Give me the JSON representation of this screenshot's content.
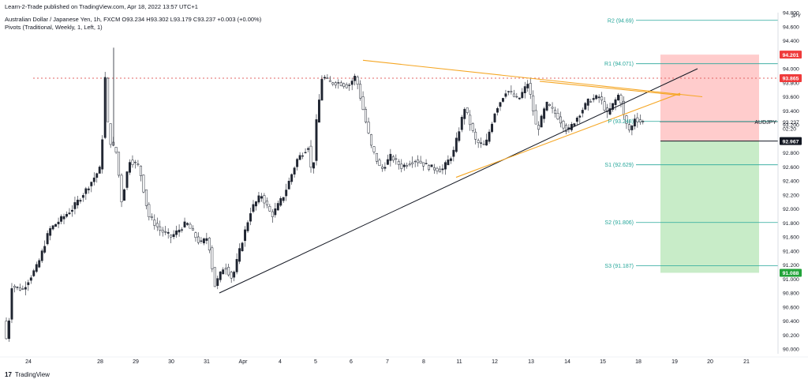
{
  "header": {
    "published": "Learn-2-Trade published on TradingView.com, Apr 18, 2022 13:57 UTC+1",
    "symbol_line": "Australian Dollar / Japanese Yen, 1h, FXCM  O93.234  H93.302  L93.179  C93.237  +0.003 (+0.00%)",
    "pivots_line": "Pivots (Traditional, Weekly, 1, Left, 1)"
  },
  "branding": {
    "logo_text": "17",
    "name": "TradingView"
  },
  "colors": {
    "up": "#26a69a",
    "down": "#ef5350",
    "candle": "#1f2430",
    "pivot_line": "#26a69a",
    "triangle": "#f5a623",
    "trendline": "#131722",
    "resistance_dotted": "#e06666",
    "sell_zone": "#ffcccc",
    "buy_zone": "#c8ecc8"
  },
  "chart_data": {
    "type": "candlestick",
    "instrument": "AUDJPY",
    "timeframe": "1h",
    "x_ticks": [
      "24",
      "28",
      "29",
      "30",
      "31",
      "Apr",
      "4",
      "5",
      "6",
      "7",
      "8",
      "11",
      "12",
      "13",
      "14",
      "15",
      "18",
      "19",
      "20",
      "21"
    ],
    "y_range": [
      90.0,
      94.8
    ],
    "y_ticks": [
      90.0,
      90.2,
      90.4,
      90.6,
      90.8,
      91.0,
      91.2,
      91.4,
      91.6,
      91.8,
      92.0,
      92.2,
      92.4,
      92.6,
      92.8,
      93.0,
      93.2,
      93.4,
      93.6,
      93.8,
      94.0,
      94.2,
      94.4,
      94.6,
      94.8
    ],
    "y_tick_labels": [
      "90.000",
      "90.200",
      "90.400",
      "90.600",
      "90.800",
      "91.000",
      "91.200",
      "91.400",
      "91.600",
      "91.800",
      "92.000",
      "92.200",
      "92.400",
      "92.600",
      "92.800",
      "93.000",
      "93.200",
      "93.400",
      "93.600",
      "93.800",
      "94.000",
      "94.200",
      "94.400",
      "94.600",
      "94.800"
    ],
    "axis_top_label": "94.800 JPY",
    "current_price": {
      "label": "AUDJPY",
      "value": "93.237",
      "countdown": "02:20",
      "price": 93.237
    },
    "pivots": [
      {
        "label": "R2 (94.69)",
        "value": 94.69
      },
      {
        "label": "R1 (94.071)",
        "value": 94.071
      },
      {
        "label": "P (93.248)",
        "value": 93.248
      },
      {
        "label": "S1 (92.629)",
        "value": 92.629
      },
      {
        "label": "S2 (91.806)",
        "value": 91.806
      },
      {
        "label": "S3 (91.187)",
        "value": 91.187
      }
    ],
    "price_tags": [
      {
        "text": "94.201",
        "value": 94.201,
        "bg": "#ef3b3b",
        "fg": "#ffffff"
      },
      {
        "text": "93.865",
        "value": 93.865,
        "bg": "#ef3b3b",
        "fg": "#ffffff"
      },
      {
        "text": "92.967",
        "value": 92.967,
        "bg": "#131722",
        "fg": "#ffffff"
      },
      {
        "text": "91.088",
        "value": 91.088,
        "bg": "#22a33a",
        "fg": "#ffffff"
      }
    ],
    "position": {
      "stop": 94.201,
      "entry": 92.967,
      "target": 91.088
    },
    "resistance_level": 93.865,
    "anchors": [
      {
        "t": 0,
        "p": 90.4
      },
      {
        "t": 5,
        "p": 90.05
      },
      {
        "t": 10,
        "p": 90.9
      },
      {
        "t": 25,
        "p": 90.85
      },
      {
        "t": 45,
        "p": 91.2
      },
      {
        "t": 60,
        "p": 91.7
      },
      {
        "t": 75,
        "p": 91.85
      },
      {
        "t": 90,
        "p": 92.0
      },
      {
        "t": 110,
        "p": 92.3
      },
      {
        "t": 128,
        "p": 92.6
      },
      {
        "t": 133,
        "p": 93.9
      },
      {
        "t": 138,
        "p": 93.0
      },
      {
        "t": 148,
        "p": 92.8
      },
      {
        "t": 155,
        "p": 92.1
      },
      {
        "t": 165,
        "p": 92.7
      },
      {
        "t": 178,
        "p": 92.6
      },
      {
        "t": 190,
        "p": 91.9
      },
      {
        "t": 205,
        "p": 91.7
      },
      {
        "t": 220,
        "p": 91.6
      },
      {
        "t": 240,
        "p": 91.8
      },
      {
        "t": 258,
        "p": 91.5
      },
      {
        "t": 268,
        "p": 91.6
      },
      {
        "t": 277,
        "p": 90.9
      },
      {
        "t": 290,
        "p": 91.2
      },
      {
        "t": 300,
        "p": 91.0
      },
      {
        "t": 312,
        "p": 91.5
      },
      {
        "t": 325,
        "p": 92.0
      },
      {
        "t": 338,
        "p": 92.2
      },
      {
        "t": 352,
        "p": 91.9
      },
      {
        "t": 368,
        "p": 92.2
      },
      {
        "t": 385,
        "p": 92.7
      },
      {
        "t": 400,
        "p": 92.9
      },
      {
        "t": 405,
        "p": 92.4
      },
      {
        "t": 410,
        "p": 93.2
      },
      {
        "t": 418,
        "p": 93.9
      },
      {
        "t": 428,
        "p": 93.8
      },
      {
        "t": 440,
        "p": 93.8
      },
      {
        "t": 452,
        "p": 93.75
      },
      {
        "t": 462,
        "p": 93.9
      },
      {
        "t": 472,
        "p": 93.4
      },
      {
        "t": 482,
        "p": 92.9
      },
      {
        "t": 495,
        "p": 92.55
      },
      {
        "t": 508,
        "p": 92.75
      },
      {
        "t": 522,
        "p": 92.6
      },
      {
        "t": 540,
        "p": 92.7
      },
      {
        "t": 558,
        "p": 92.6
      },
      {
        "t": 575,
        "p": 92.55
      },
      {
        "t": 590,
        "p": 92.8
      },
      {
        "t": 605,
        "p": 93.45
      },
      {
        "t": 620,
        "p": 92.95
      },
      {
        "t": 632,
        "p": 92.9
      },
      {
        "t": 645,
        "p": 93.4
      },
      {
        "t": 660,
        "p": 93.7
      },
      {
        "t": 675,
        "p": 93.55
      },
      {
        "t": 688,
        "p": 93.8
      },
      {
        "t": 700,
        "p": 93.1
      },
      {
        "t": 712,
        "p": 93.5
      },
      {
        "t": 725,
        "p": 93.35
      },
      {
        "t": 740,
        "p": 93.1
      },
      {
        "t": 755,
        "p": 93.35
      },
      {
        "t": 768,
        "p": 93.55
      },
      {
        "t": 782,
        "p": 93.6
      },
      {
        "t": 792,
        "p": 93.35
      },
      {
        "t": 800,
        "p": 93.5
      },
      {
        "t": 808,
        "p": 93.65
      },
      {
        "t": 815,
        "p": 93.25
      },
      {
        "t": 822,
        "p": 93.1
      },
      {
        "t": 828,
        "p": 93.3
      },
      {
        "t": 836,
        "p": 93.24
      }
    ]
  }
}
